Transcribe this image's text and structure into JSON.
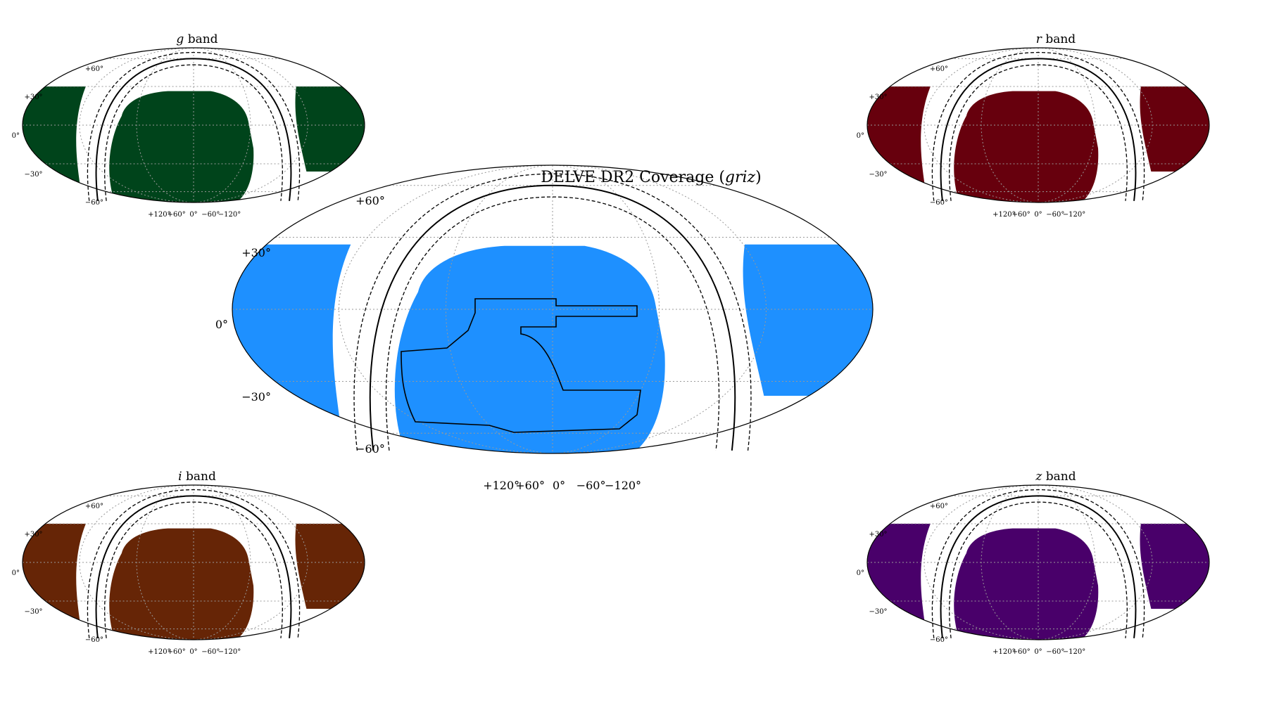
{
  "main": {
    "title": "DELVE DR2 Coverage",
    "title_filter": "griz",
    "color": "#1e90ff",
    "lat_labels": [
      "+60°",
      "+30°",
      "0°",
      "−30°",
      "−60°"
    ],
    "lon_labels": [
      "+120°",
      "+60°",
      "0°",
      "−60°",
      "−120°"
    ]
  },
  "bands": [
    {
      "id": "g",
      "label": "band",
      "letter": "g",
      "color": "#00441b"
    },
    {
      "id": "r",
      "label": "band",
      "letter": "r",
      "color": "#67000d"
    },
    {
      "id": "i",
      "label": "band",
      "letter": "i",
      "color": "#662506"
    },
    {
      "id": "z",
      "label": "band",
      "letter": "z",
      "color": "#49006a"
    }
  ],
  "small_lat_labels": [
    "+60°",
    "+30°",
    "0°",
    "−30°",
    "−60°"
  ],
  "small_lon_labels": [
    "+120°",
    "+60°",
    "0°",
    "−60°",
    "−120°"
  ]
}
